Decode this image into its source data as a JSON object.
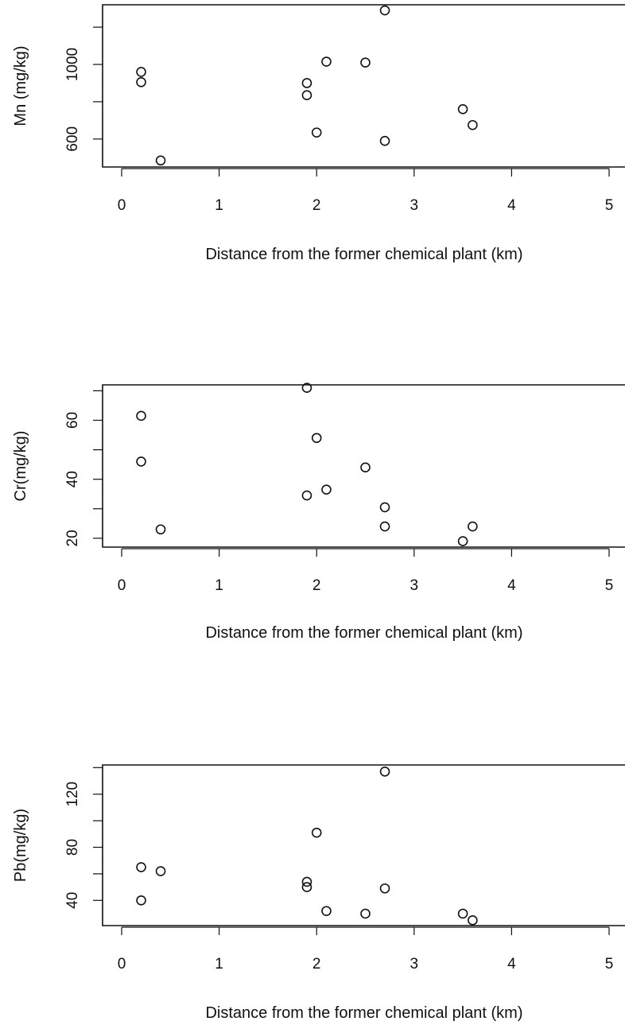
{
  "chart_data": [
    {
      "type": "scatter",
      "title": "",
      "xlabel": "Distance from the former chemical plant (km)",
      "ylabel": "Mn (mg/kg)",
      "xlim": [
        0,
        5
      ],
      "ylim": [
        450,
        1320
      ],
      "x_ticks": [
        0,
        1,
        2,
        3,
        4,
        5
      ],
      "y_ticks": [
        600,
        800,
        1000,
        1200
      ],
      "y_tick_labels": [
        "600",
        "",
        "1000",
        ""
      ],
      "grid": false,
      "series": [
        {
          "points": [
            {
              "x": 0.2,
              "y": 960
            },
            {
              "x": 0.2,
              "y": 905
            },
            {
              "x": 0.4,
              "y": 485
            },
            {
              "x": 1.9,
              "y": 900
            },
            {
              "x": 1.9,
              "y": 835
            },
            {
              "x": 2.0,
              "y": 635
            },
            {
              "x": 2.1,
              "y": 1015
            },
            {
              "x": 2.5,
              "y": 1010
            },
            {
              "x": 2.7,
              "y": 1290
            },
            {
              "x": 2.7,
              "y": 590
            },
            {
              "x": 3.5,
              "y": 760
            },
            {
              "x": 3.6,
              "y": 675
            }
          ]
        }
      ]
    },
    {
      "type": "scatter",
      "title": "",
      "xlabel": "Distance from the former chemical plant (km)",
      "ylabel": "Cr(mg/kg)",
      "xlim": [
        0,
        5
      ],
      "ylim": [
        17,
        72
      ],
      "x_ticks": [
        0,
        1,
        2,
        3,
        4,
        5
      ],
      "y_ticks": [
        20,
        30,
        40,
        50,
        60,
        70
      ],
      "y_tick_labels": [
        "20",
        "",
        "40",
        "",
        "60",
        ""
      ],
      "grid": false,
      "series": [
        {
          "points": [
            {
              "x": 0.2,
              "y": 61.5
            },
            {
              "x": 0.2,
              "y": 46
            },
            {
              "x": 0.4,
              "y": 23
            },
            {
              "x": 1.9,
              "y": 71
            },
            {
              "x": 1.9,
              "y": 34.5
            },
            {
              "x": 2.0,
              "y": 54
            },
            {
              "x": 2.1,
              "y": 36.5
            },
            {
              "x": 2.5,
              "y": 44
            },
            {
              "x": 2.7,
              "y": 30.5
            },
            {
              "x": 2.7,
              "y": 24
            },
            {
              "x": 3.5,
              "y": 19
            },
            {
              "x": 3.6,
              "y": 24
            }
          ]
        }
      ]
    },
    {
      "type": "scatter",
      "title": "",
      "xlabel": "Distance from the former chemical plant (km)",
      "ylabel": "Pb(mg/kg)",
      "xlim": [
        0,
        5
      ],
      "ylim": [
        21,
        142
      ],
      "x_ticks": [
        0,
        1,
        2,
        3,
        4,
        5
      ],
      "y_ticks": [
        40,
        60,
        80,
        100,
        120,
        140
      ],
      "y_tick_labels": [
        "40",
        "",
        "80",
        "",
        "120",
        ""
      ],
      "grid": false,
      "series": [
        {
          "points": [
            {
              "x": 0.2,
              "y": 65
            },
            {
              "x": 0.2,
              "y": 40
            },
            {
              "x": 0.4,
              "y": 62
            },
            {
              "x": 1.9,
              "y": 54
            },
            {
              "x": 1.9,
              "y": 50
            },
            {
              "x": 2.0,
              "y": 91
            },
            {
              "x": 2.1,
              "y": 32
            },
            {
              "x": 2.5,
              "y": 30
            },
            {
              "x": 2.7,
              "y": 137
            },
            {
              "x": 2.7,
              "y": 49
            },
            {
              "x": 3.5,
              "y": 30
            },
            {
              "x": 3.6,
              "y": 25
            }
          ]
        }
      ]
    }
  ]
}
